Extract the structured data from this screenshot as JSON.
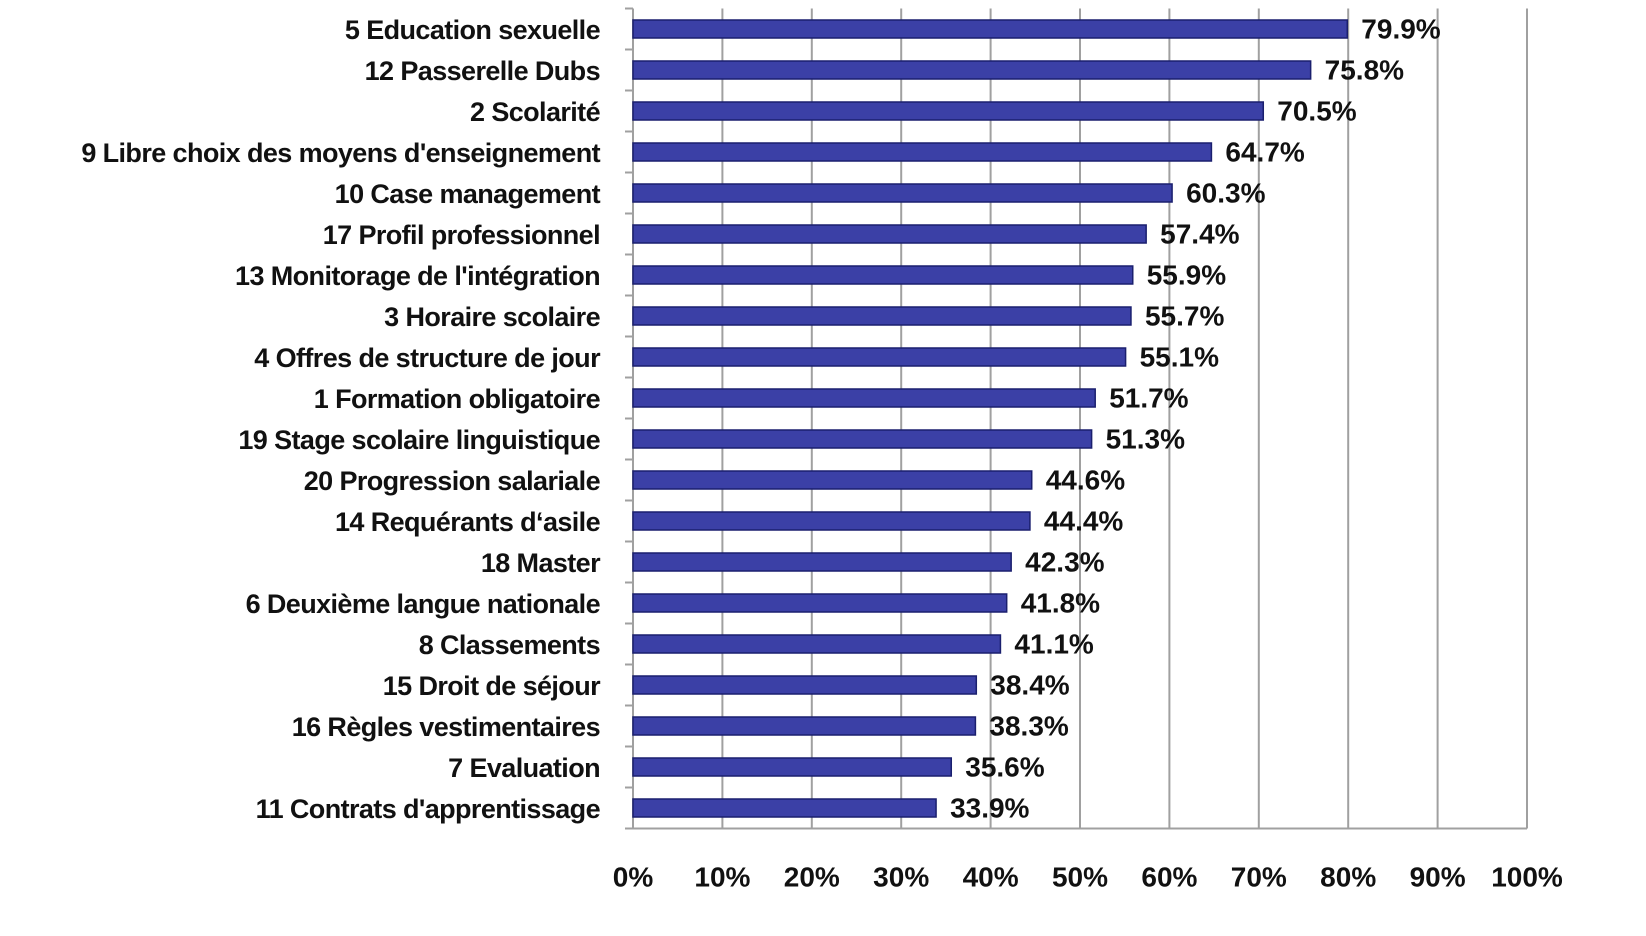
{
  "chart_data": {
    "type": "barh",
    "categories": [
      "5 Education sexuelle",
      "12 Passerelle Dubs",
      "2 Scolarité",
      "9 Libre choix des moyens d'enseignement",
      "10 Case management",
      "17 Profil professionnel",
      "13 Monitorage de l'intégration",
      "3 Horaire scolaire",
      "4 Offres de structure de jour",
      "1 Formation obligatoire",
      "19 Stage scolaire linguistique",
      "20 Progression salariale",
      "14 Requérants d‘asile",
      "18 Master",
      "6 Deuxième langue nationale",
      "8 Classements",
      "15 Droit de séjour",
      "16 Règles vestimentaires",
      "7 Evaluation",
      "11 Contrats d'apprentissage"
    ],
    "values": [
      79.9,
      75.8,
      70.5,
      64.7,
      60.3,
      57.4,
      55.9,
      55.7,
      55.1,
      51.7,
      51.3,
      44.6,
      44.4,
      42.3,
      41.8,
      41.1,
      38.4,
      38.3,
      35.6,
      33.9
    ],
    "value_labels": [
      "79.9%",
      "75.8%",
      "70.5%",
      "64.7%",
      "60.3%",
      "57.4%",
      "55.9%",
      "55.7%",
      "55.1%",
      "51.7%",
      "51.3%",
      "44.6%",
      "44.4%",
      "42.3%",
      "41.8%",
      "41.1%",
      "38.4%",
      "38.3%",
      "35.6%",
      "33.9%"
    ],
    "color": "#3b40a6",
    "xlim": [
      0,
      100
    ],
    "xticks": [
      {
        "value": 0,
        "label": "0%"
      },
      {
        "value": 10,
        "label": "10%"
      },
      {
        "value": 20,
        "label": "20%"
      },
      {
        "value": 30,
        "label": "30%"
      },
      {
        "value": 40,
        "label": "40%"
      },
      {
        "value": 50,
        "label": "50%"
      },
      {
        "value": 60,
        "label": "60%"
      },
      {
        "value": 70,
        "label": "70%"
      },
      {
        "value": 80,
        "label": "80%"
      },
      {
        "value": 90,
        "label": "90%"
      },
      {
        "value": 100,
        "label": "100%"
      }
    ],
    "grid": true
  }
}
